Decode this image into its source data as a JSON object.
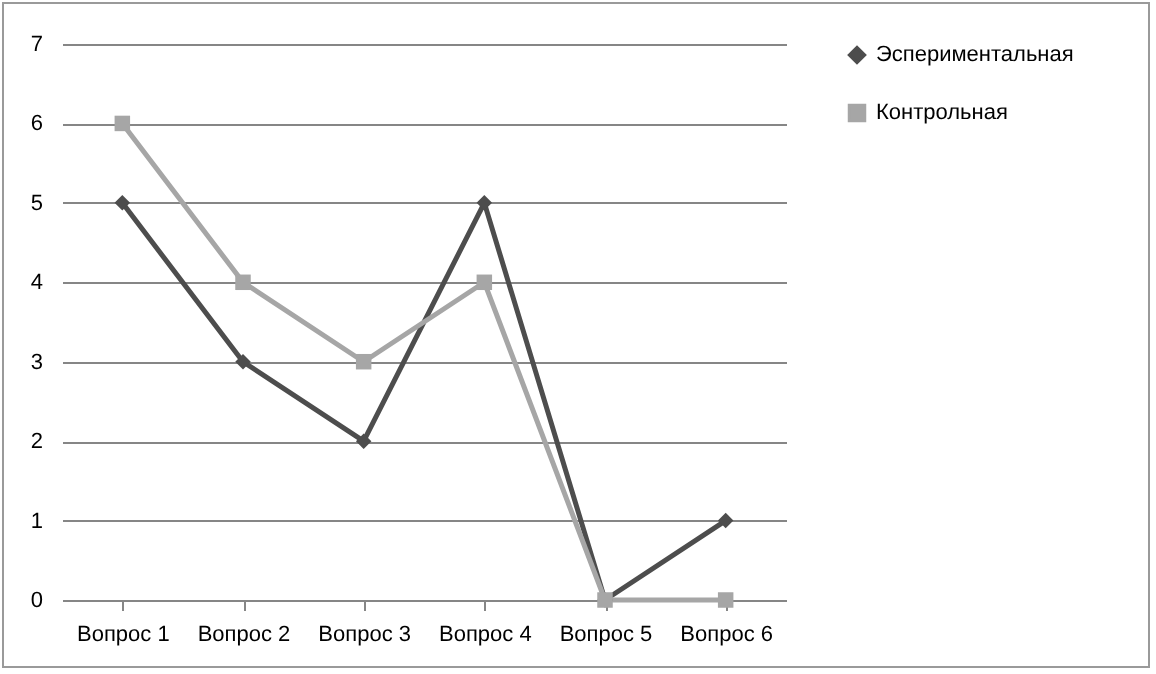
{
  "chart_data": {
    "type": "line",
    "categories": [
      "Вопрос 1",
      "Вопрос 2",
      "Вопрос 3",
      "Вопрос 4",
      "Вопрос 5",
      "Вопрос 6"
    ],
    "series": [
      {
        "name": "Эспериментальная",
        "color": "#4d4d4d",
        "marker": "diamond",
        "values": [
          5,
          3,
          2,
          5,
          0,
          1
        ]
      },
      {
        "name": "Контрольная",
        "color": "#a6a6a6",
        "marker": "square",
        "values": [
          6,
          4,
          3,
          4,
          0,
          0
        ]
      }
    ],
    "ylim": [
      0,
      7
    ],
    "yticks": [
      0,
      1,
      2,
      3,
      4,
      5,
      6,
      7
    ],
    "grid": "y",
    "legend": "right",
    "line_style": "solid"
  }
}
